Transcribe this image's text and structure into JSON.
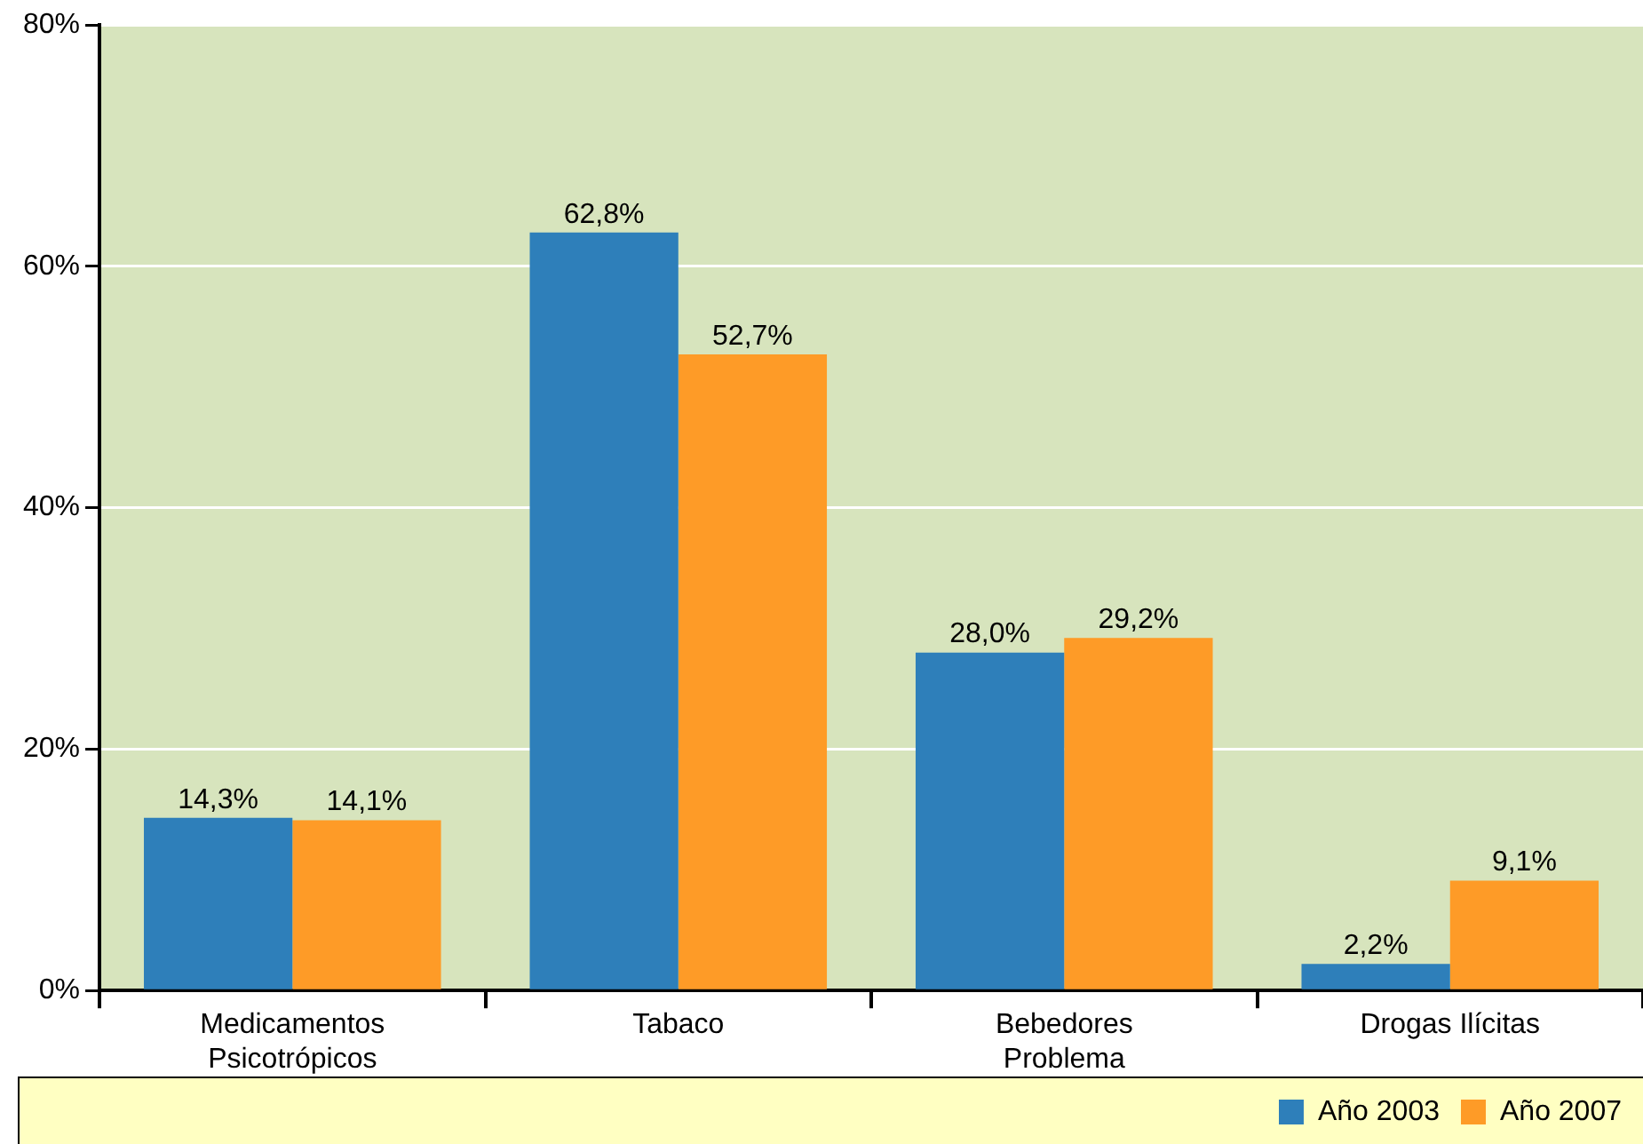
{
  "chart_data": {
    "type": "bar",
    "categories": [
      "Medicamentos\nPsicotrópicos",
      "Tabaco",
      "Bebedores\nProblema",
      "Drogas Ilícitas"
    ],
    "series": [
      {
        "name": "Año 2003",
        "color": "#2e7fba",
        "values": [
          14.3,
          62.8,
          28.0,
          2.2
        ],
        "value_labels": [
          "14,3%",
          "62,8%",
          "28,0%",
          "2,2%"
        ]
      },
      {
        "name": "Año 2007",
        "color": "#fe9b27",
        "values": [
          14.1,
          52.7,
          29.2,
          9.1
        ],
        "value_labels": [
          "14,1%",
          "52,7%",
          "29,2%",
          "9,1%"
        ]
      }
    ],
    "ylim": [
      0,
      80
    ],
    "yticks": [
      {
        "value": 0,
        "label": "0%"
      },
      {
        "value": 20,
        "label": "20%"
      },
      {
        "value": 40,
        "label": "40%"
      },
      {
        "value": 60,
        "label": "60%"
      },
      {
        "value": 80,
        "label": "80%"
      }
    ],
    "grid": "y",
    "legend": "bottom right"
  }
}
